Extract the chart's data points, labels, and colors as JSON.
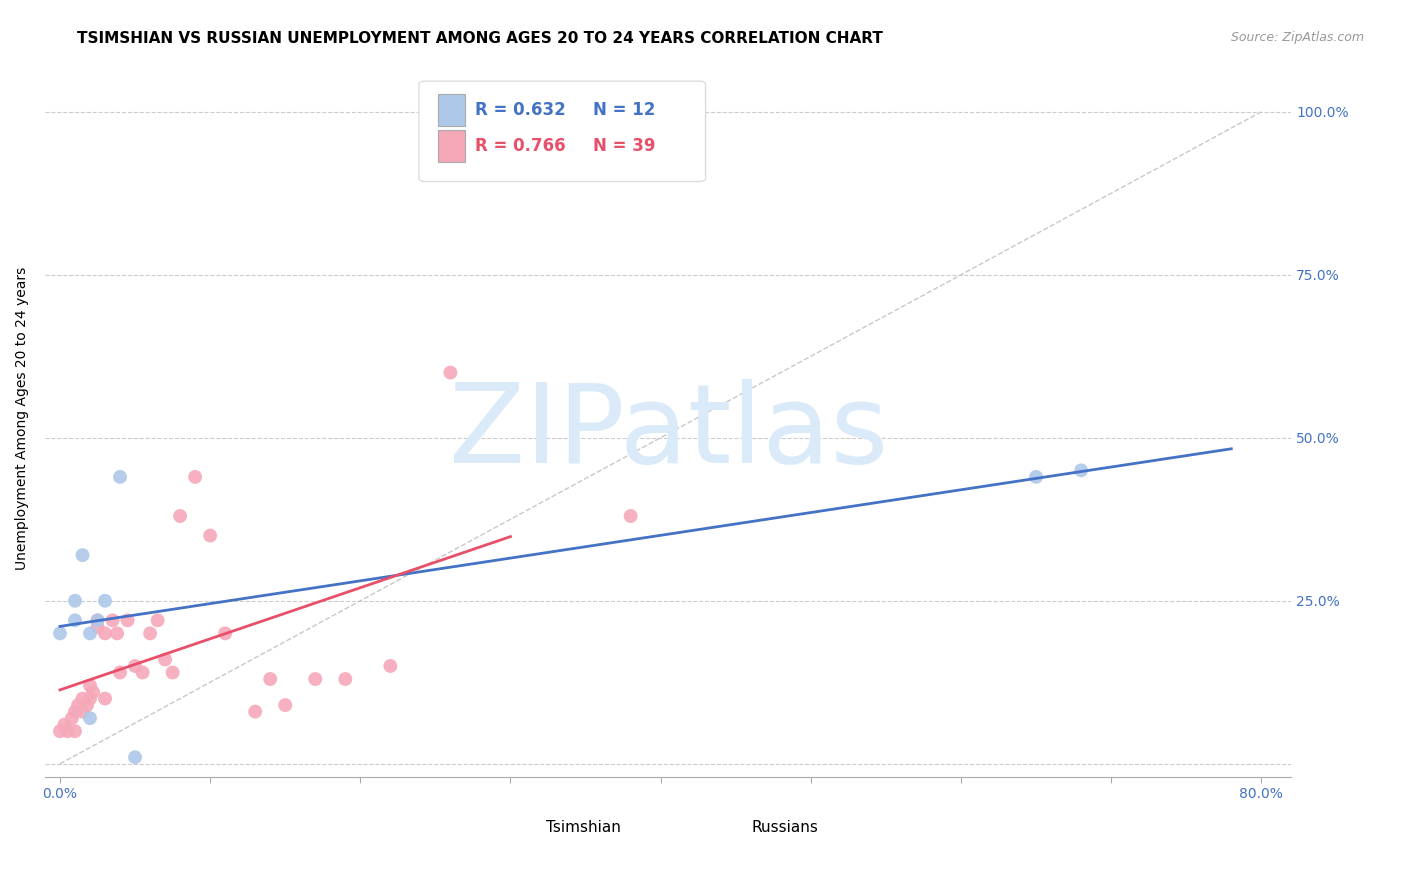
{
  "title": "TSIMSHIAN VS RUSSIAN UNEMPLOYMENT AMONG AGES 20 TO 24 YEARS CORRELATION CHART",
  "source": "Source: ZipAtlas.com",
  "ylabel": "Unemployment Among Ages 20 to 24 years",
  "tsimshian_R": 0.632,
  "tsimshian_N": 12,
  "russian_R": 0.766,
  "russian_N": 39,
  "tsimshian_color": "#adc8e8",
  "russian_color": "#f5a8b8",
  "tsimshian_line_color": "#4472c4",
  "russian_line_color": "#e8506a",
  "watermark_color": "#daeaf8",
  "tsimshian_x": [
    0.0,
    0.01,
    0.01,
    0.015,
    0.02,
    0.02,
    0.025,
    0.03,
    0.04,
    0.65,
    0.68,
    0.05
  ],
  "tsimshian_y": [
    0.2,
    0.22,
    0.25,
    0.32,
    0.2,
    0.07,
    0.22,
    0.25,
    0.44,
    0.44,
    0.45,
    0.01
  ],
  "russian_x": [
    0.0,
    0.003,
    0.005,
    0.008,
    0.01,
    0.01,
    0.012,
    0.015,
    0.015,
    0.018,
    0.02,
    0.02,
    0.022,
    0.025,
    0.025,
    0.03,
    0.03,
    0.035,
    0.038,
    0.04,
    0.045,
    0.05,
    0.055,
    0.06,
    0.065,
    0.07,
    0.075,
    0.08,
    0.09,
    0.1,
    0.11,
    0.13,
    0.14,
    0.15,
    0.17,
    0.19,
    0.22,
    0.26,
    0.38
  ],
  "russian_y": [
    0.05,
    0.06,
    0.05,
    0.07,
    0.05,
    0.08,
    0.09,
    0.08,
    0.1,
    0.09,
    0.1,
    0.12,
    0.11,
    0.22,
    0.21,
    0.1,
    0.2,
    0.22,
    0.2,
    0.14,
    0.22,
    0.15,
    0.14,
    0.2,
    0.22,
    0.16,
    0.14,
    0.38,
    0.44,
    0.35,
    0.2,
    0.08,
    0.13,
    0.09,
    0.13,
    0.13,
    0.15,
    0.6,
    0.38
  ],
  "xlim": [
    -0.01,
    0.82
  ],
  "ylim": [
    -0.02,
    1.08
  ],
  "xticks": [
    0.0,
    0.1,
    0.2,
    0.3,
    0.4,
    0.5,
    0.6,
    0.7,
    0.8
  ],
  "yticks": [
    0.0,
    0.25,
    0.5,
    0.75,
    1.0
  ],
  "xtick_labels": [
    "0.0%",
    "",
    "",
    "",
    "",
    "",
    "",
    "",
    "80.0%"
  ],
  "ytick_right_labels": [
    "",
    "25.0%",
    "50.0%",
    "75.0%",
    "100.0%"
  ],
  "grid_color": "#cccccc",
  "background_color": "#ffffff",
  "title_fontsize": 11,
  "ylabel_fontsize": 10,
  "tick_fontsize": 10,
  "marker_size": 100
}
